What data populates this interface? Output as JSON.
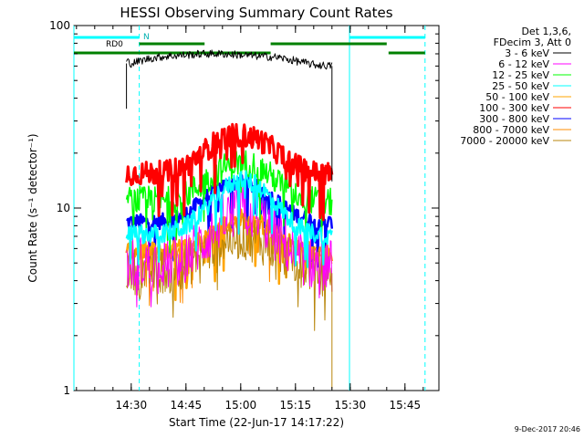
{
  "chart_data": {
    "type": "line",
    "title": "HESSI Observing Summary Count Rates",
    "xlabel": "Start Time (22-Jun-17 14:17:22)",
    "ylabel": "Count Rate (s⁻¹ detector⁻¹)",
    "y_scale": "log",
    "xlim_minutes": [
      14.3,
      114.3
    ],
    "ylim": [
      1,
      100
    ],
    "x_ticks": [
      {
        "minute": 30,
        "label": "14:30"
      },
      {
        "minute": 45,
        "label": "14:45"
      },
      {
        "minute": 60,
        "label": "15:00"
      },
      {
        "minute": 75,
        "label": "15:15"
      },
      {
        "minute": 90,
        "label": "15:30"
      },
      {
        "minute": 105,
        "label": "15:45"
      }
    ],
    "y_ticks": [
      {
        "value": 1,
        "label": "1"
      },
      {
        "value": 10,
        "label": "10"
      },
      {
        "value": 100,
        "label": "100"
      }
    ],
    "legend": {
      "position": "right-outside",
      "header": [
        "Det 1,3,6,",
        "FDecim 3, Att 0"
      ]
    },
    "data_start_minute": 28.7,
    "data_end_minute": 85.0,
    "series": [
      {
        "name": "3 - 6 keV",
        "color": "#000000",
        "x": [
          28.7,
          30,
          35,
          40,
          45,
          50,
          55,
          60,
          65,
          70,
          75,
          80,
          85
        ],
        "y": [
          64,
          62,
          66,
          68,
          69,
          70,
          70,
          69,
          68,
          67,
          64,
          61,
          60
        ]
      },
      {
        "name": "6 - 12 keV",
        "color": "#ff00ff",
        "x": [
          28.7,
          30,
          35,
          40,
          45,
          50,
          55,
          60,
          65,
          70,
          75,
          80,
          85
        ],
        "y": [
          5.0,
          5.0,
          5.0,
          5.0,
          5.4,
          6.6,
          8.6,
          9.8,
          9.0,
          6.9,
          5.5,
          5.0,
          4.8
        ]
      },
      {
        "name": "12 - 25 keV",
        "color": "#00ff00",
        "x": [
          28.7,
          30,
          35,
          40,
          45,
          50,
          55,
          60,
          65,
          70,
          75,
          80,
          85
        ],
        "y": [
          11.0,
          11.0,
          11.0,
          11.0,
          11.8,
          13.8,
          16.5,
          18.0,
          16.8,
          14.0,
          12.0,
          11.0,
          10.7
        ]
      },
      {
        "name": "25 - 50 keV",
        "color": "#00ffff",
        "x": [
          28.7,
          30,
          35,
          40,
          45,
          50,
          55,
          60,
          65,
          70,
          75,
          80,
          85
        ],
        "y": [
          7.2,
          7.2,
          7.2,
          7.3,
          7.9,
          9.8,
          12.6,
          14.5,
          13.2,
          10.3,
          8.0,
          7.3,
          7.0
        ]
      },
      {
        "name": "50 - 100 keV",
        "color": "#ffa500",
        "x": [
          28.7,
          30,
          35,
          40,
          45,
          50,
          55,
          60,
          65,
          70,
          75,
          80,
          85
        ],
        "y": [
          5.8,
          5.8,
          5.8,
          5.8,
          6.1,
          6.9,
          8.0,
          8.8,
          8.3,
          7.1,
          6.2,
          5.8,
          5.6
        ]
      },
      {
        "name": "100 - 300 keV",
        "color": "#ff0000",
        "x": [
          28.7,
          30,
          35,
          40,
          45,
          50,
          55,
          60,
          65,
          70,
          75,
          80,
          85
        ],
        "y": [
          15.5,
          15.5,
          15.5,
          15.7,
          17.0,
          20.5,
          24.3,
          25.2,
          23.8,
          20.3,
          17.1,
          15.7,
          15.3
        ]
      },
      {
        "name": "300 - 800 keV",
        "color": "#0000ff",
        "x": [
          28.7,
          30,
          35,
          40,
          45,
          50,
          55,
          60,
          65,
          70,
          75,
          80,
          85
        ],
        "y": [
          8.4,
          8.4,
          8.4,
          8.5,
          9.2,
          11.2,
          13.3,
          13.8,
          12.9,
          10.8,
          9.2,
          8.5,
          8.3
        ]
      },
      {
        "name": "800 - 7000 keV",
        "color": "#ff8c00",
        "x": [
          28.7,
          30,
          35,
          40,
          45,
          50,
          55,
          60,
          65,
          70,
          75,
          80,
          85
        ],
        "y": [
          5.6,
          5.6,
          5.6,
          5.6,
          5.8,
          6.6,
          7.8,
          8.4,
          8.0,
          6.9,
          6.0,
          5.6,
          5.4
        ]
      },
      {
        "name": "7000 - 20000 keV",
        "color": "#b8860b",
        "x": [
          28.7,
          30,
          35,
          40,
          45,
          50,
          55,
          60,
          65,
          70,
          75,
          80,
          85
        ],
        "y": [
          4.5,
          4.5,
          4.5,
          4.6,
          4.9,
          5.7,
          6.6,
          7.0,
          6.7,
          5.9,
          5.1,
          4.6,
          4.4
        ]
      }
    ],
    "annotations": {
      "label_rd0": "RD0",
      "label_n": "N",
      "cyan_bars": [
        {
          "start_minute": 14.3,
          "end_minute": 32.2
        },
        {
          "start_minute": 89.8,
          "end_minute": 110.5
        }
      ],
      "green_segments": [
        {
          "start_minute": 14.3,
          "end_minute": 28.7,
          "level": "lower"
        },
        {
          "start_minute": 32.2,
          "end_minute": 50.1,
          "level": "upper"
        },
        {
          "start_minute": 28.5,
          "end_minute": 68.2,
          "level": "lower"
        },
        {
          "start_minute": 68.2,
          "end_minute": 100.0,
          "level": "upper"
        },
        {
          "start_minute": 100.5,
          "end_minute": 110.5,
          "level": "lower"
        }
      ],
      "cyan_solid_lines_minute": [
        14.3,
        89.8
      ],
      "cyan_dashed_lines_minute": [
        32.2,
        110.5
      ]
    },
    "footer_date": "9-Dec-2017 20:46"
  }
}
